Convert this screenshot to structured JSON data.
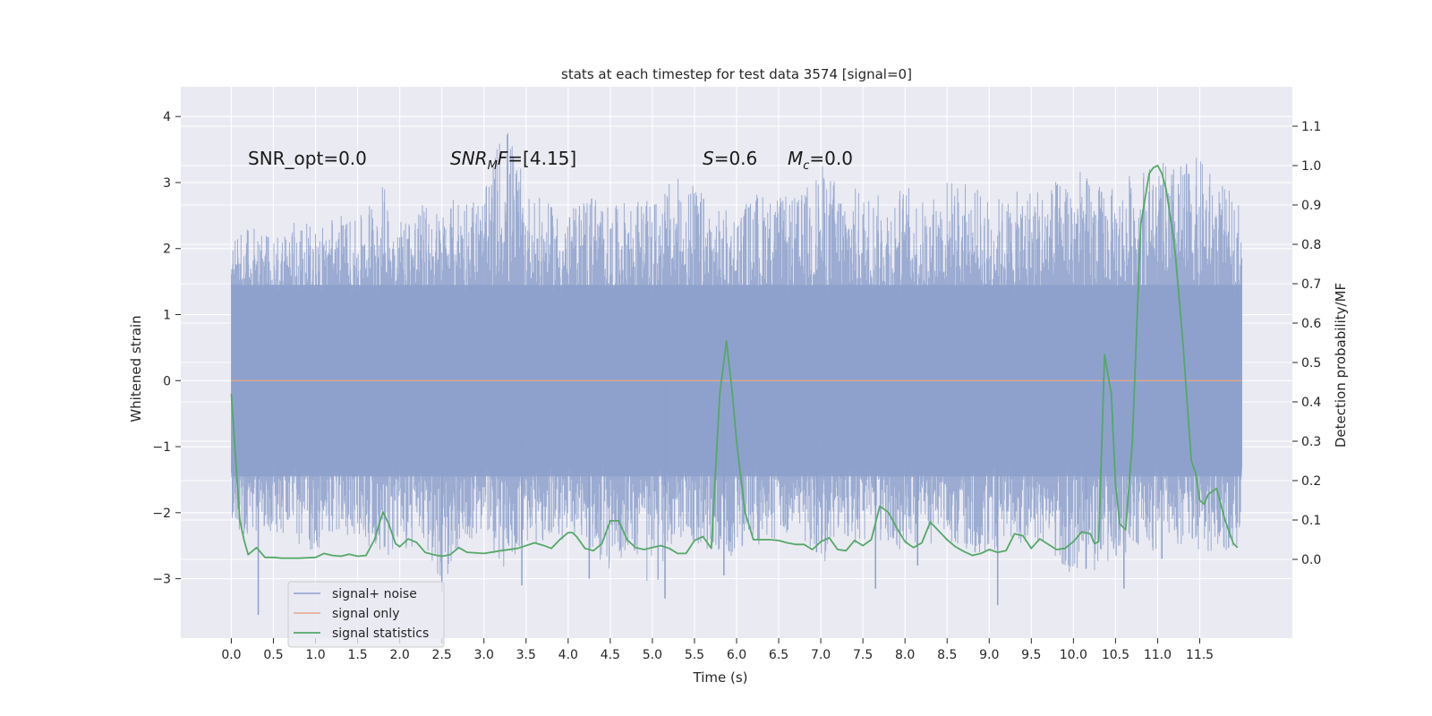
{
  "chart_data": {
    "type": "line",
    "title": "stats at each timestep for test data 3574 [signal=0]",
    "xlabel": "Time (s)",
    "ylabel_left": "Whitened strain",
    "ylabel_right": "Detection probability/MF",
    "xlim": [
      -0.6,
      12.6
    ],
    "ylim_left": [
      -3.9,
      4.45
    ],
    "ylim_right": [
      -0.2,
      1.2
    ],
    "x_ticks": [
      0.0,
      0.5,
      1.0,
      1.5,
      2.0,
      2.5,
      3.0,
      3.5,
      4.0,
      4.5,
      5.0,
      5.5,
      6.0,
      6.5,
      7.0,
      7.5,
      8.0,
      8.5,
      9.0,
      9.5,
      10.0,
      10.5,
      11.0,
      11.5
    ],
    "x_tick_labels": [
      "0.0",
      "0.5",
      "1.0",
      "1.5",
      "2.0",
      "2.5",
      "3.0",
      "3.5",
      "4.0",
      "4.5",
      "5.0",
      "5.5",
      "6.0",
      "6.5",
      "7.0",
      "7.5",
      "8.0",
      "8.5",
      "9.0",
      "9.5",
      "10.0",
      "10.5",
      "11.0",
      "11.5"
    ],
    "y_left_ticks": [
      -3,
      -2,
      -1,
      0,
      1,
      2,
      3,
      4
    ],
    "y_left_tick_labels": [
      "−3",
      "−2",
      "−1",
      "0",
      "1",
      "2",
      "3",
      "4"
    ],
    "y_right_ticks": [
      0.0,
      0.1,
      0.2,
      0.3,
      0.4,
      0.5,
      0.6,
      0.7,
      0.8,
      0.9,
      1.0,
      1.1
    ],
    "y_right_tick_labels": [
      "0.0",
      "0.1",
      "0.2",
      "0.3",
      "0.4",
      "0.5",
      "0.6",
      "0.7",
      "0.8",
      "0.9",
      "1.0",
      "1.1"
    ],
    "grid": true,
    "legend_position": "lower-left",
    "annotations": {
      "snr_opt": "SNR_opt=0.0",
      "snr_mf": {
        "base": "SNR",
        "sub": "M",
        "rest": "F=[4.15]"
      },
      "s": {
        "sym": "S",
        "rest": "=0.6"
      },
      "mc": {
        "sym": "M",
        "sub": "c",
        "rest": "=0.0"
      }
    },
    "series": [
      {
        "name": "signal+ noise",
        "color": "#8da0cb",
        "axis": "left",
        "x_range": [
          0.0,
          12.0
        ],
        "envelope_upper": [
          2.1,
          2.4,
          2.2,
          2.5,
          2.3,
          2.6,
          2.4,
          3.1,
          2.5,
          2.7,
          2.6,
          2.9,
          2.8,
          4.1,
          2.9,
          2.7,
          2.5,
          3.0,
          2.6,
          2.8,
          2.7,
          3.1,
          3.0,
          2.6,
          2.6,
          2.9,
          2.8,
          2.8,
          3.3,
          3.0,
          2.9,
          2.8,
          3.0,
          2.7,
          3.1,
          3.0,
          2.8,
          2.8,
          3.0,
          3.0,
          3.3,
          3.0,
          2.9,
          3.3,
          3.3,
          3.3,
          3.4,
          3.0,
          2.7
        ],
        "envelope_lower": [
          -2.3,
          -2.4,
          -2.3,
          -2.5,
          -2.6,
          -2.3,
          -2.4,
          -2.6,
          -2.7,
          -2.5,
          -3.1,
          -2.5,
          -2.4,
          -2.9,
          -2.5,
          -2.5,
          -2.4,
          -2.6,
          -2.9,
          -2.5,
          -3.3,
          -2.4,
          -2.6,
          -2.6,
          -2.7,
          -2.5,
          -2.5,
          -2.3,
          -2.9,
          -2.3,
          -2.6,
          -2.5,
          -2.7,
          -2.5,
          -2.4,
          -2.7,
          -2.6,
          -2.5,
          -2.5,
          -2.6,
          -3.0,
          -2.9,
          -2.7,
          -2.5,
          -2.6,
          -2.5,
          -2.6,
          -2.6,
          -2.5
        ],
        "spikes": [
          [
            0.32,
            -3.55
          ],
          [
            2.5,
            -3.2
          ],
          [
            3.45,
            -3.1
          ],
          [
            4.25,
            -3.0
          ],
          [
            5.15,
            -3.3
          ],
          [
            5.85,
            -2.95
          ],
          [
            6.95,
            -2.6
          ],
          [
            7.65,
            -3.15
          ],
          [
            8.15,
            -2.8
          ],
          [
            9.1,
            -3.4
          ],
          [
            10.15,
            -2.85
          ],
          [
            10.6,
            -3.15
          ],
          [
            11.05,
            -2.7
          ]
        ]
      },
      {
        "name": "signal only",
        "color": "#e5a68a",
        "axis": "left",
        "x": [
          0.0,
          12.0
        ],
        "values": [
          0.0,
          0.0
        ]
      },
      {
        "name": "signal statistics",
        "color": "#55a868",
        "axis": "right",
        "x": [
          0.0,
          0.1,
          0.15,
          0.2,
          0.3,
          0.4,
          0.5,
          0.6,
          0.8,
          1.0,
          1.1,
          1.2,
          1.3,
          1.4,
          1.5,
          1.6,
          1.7,
          1.8,
          1.87,
          1.95,
          2.0,
          2.1,
          2.2,
          2.3,
          2.4,
          2.5,
          2.6,
          2.7,
          2.8,
          3.0,
          3.2,
          3.4,
          3.6,
          3.7,
          3.8,
          3.9,
          4.0,
          4.05,
          4.1,
          4.2,
          4.3,
          4.4,
          4.5,
          4.6,
          4.7,
          4.8,
          4.9,
          5.0,
          5.1,
          5.2,
          5.3,
          5.4,
          5.5,
          5.6,
          5.7,
          5.8,
          5.88,
          5.95,
          6.0,
          6.1,
          6.2,
          6.4,
          6.5,
          6.6,
          6.7,
          6.8,
          6.9,
          7.0,
          7.1,
          7.2,
          7.3,
          7.4,
          7.5,
          7.6,
          7.7,
          7.8,
          7.9,
          8.0,
          8.1,
          8.2,
          8.3,
          8.5,
          8.6,
          8.7,
          8.8,
          8.9,
          9.0,
          9.1,
          9.2,
          9.3,
          9.4,
          9.5,
          9.6,
          9.8,
          9.9,
          10.0,
          10.1,
          10.2,
          10.25,
          10.3,
          10.37,
          10.45,
          10.5,
          10.55,
          10.62,
          10.7,
          10.8,
          10.9,
          10.95,
          11.0,
          11.05,
          11.1,
          11.2,
          11.3,
          11.4,
          11.45,
          11.5,
          11.55,
          11.6,
          11.7,
          11.8,
          11.9,
          11.95
        ],
        "values": [
          0.42,
          0.1,
          0.05,
          0.012,
          0.03,
          0.005,
          0.005,
          0.003,
          0.003,
          0.005,
          0.015,
          0.01,
          0.008,
          0.013,
          0.008,
          0.01,
          0.05,
          0.12,
          0.09,
          0.04,
          0.032,
          0.052,
          0.043,
          0.018,
          0.012,
          0.008,
          0.012,
          0.03,
          0.018,
          0.015,
          0.022,
          0.028,
          0.042,
          0.036,
          0.028,
          0.05,
          0.068,
          0.068,
          0.058,
          0.028,
          0.022,
          0.04,
          0.098,
          0.098,
          0.05,
          0.03,
          0.025,
          0.03,
          0.035,
          0.028,
          0.015,
          0.015,
          0.048,
          0.058,
          0.028,
          0.42,
          0.555,
          0.42,
          0.3,
          0.12,
          0.05,
          0.05,
          0.048,
          0.042,
          0.038,
          0.038,
          0.025,
          0.045,
          0.055,
          0.025,
          0.022,
          0.048,
          0.035,
          0.05,
          0.135,
          0.12,
          0.08,
          0.045,
          0.03,
          0.042,
          0.095,
          0.05,
          0.032,
          0.02,
          0.01,
          0.015,
          0.025,
          0.018,
          0.022,
          0.065,
          0.06,
          0.028,
          0.052,
          0.025,
          0.028,
          0.045,
          0.07,
          0.065,
          0.04,
          0.045,
          0.52,
          0.42,
          0.19,
          0.09,
          0.075,
          0.3,
          0.85,
          0.98,
          0.995,
          1.0,
          0.98,
          0.94,
          0.8,
          0.55,
          0.25,
          0.22,
          0.15,
          0.14,
          0.165,
          0.18,
          0.1,
          0.04,
          0.03
        ]
      }
    ]
  }
}
